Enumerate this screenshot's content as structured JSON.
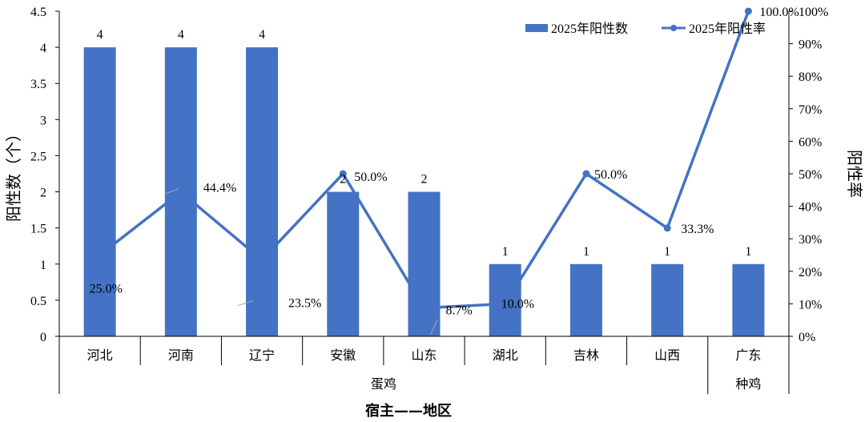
{
  "chart_data": {
    "type": "bar+line",
    "categories": [
      "河北",
      "河南",
      "辽宁",
      "安徽",
      "山东",
      "湖北",
      "吉林",
      "山西",
      "广东"
    ],
    "groups": [
      {
        "label": "蛋鸡",
        "categories": [
          "河北",
          "河南",
          "辽宁",
          "安徽",
          "山东",
          "湖北",
          "吉林",
          "山西"
        ]
      },
      {
        "label": "种鸡",
        "categories": [
          "广东"
        ]
      }
    ],
    "series": [
      {
        "name": "2025年阳性数",
        "type": "bar",
        "axis": "left",
        "color": "#4472C4",
        "values": [
          4,
          4,
          4,
          2,
          2,
          1,
          1,
          1,
          1
        ],
        "labels": [
          "4",
          "4",
          "4",
          "2",
          "2",
          "1",
          "1",
          "1",
          "1"
        ]
      },
      {
        "name": "2025年阳性率",
        "type": "line",
        "axis": "right",
        "color": "#4472C4",
        "values": [
          25.0,
          44.4,
          23.5,
          50.0,
          8.7,
          10.0,
          50.0,
          33.3,
          100.0
        ],
        "labels": [
          "25.0%",
          "44.4%",
          "23.5%",
          "50.0%",
          "8.7%",
          "10.0%",
          "50.0%",
          "33.3%",
          "100.0%"
        ]
      }
    ],
    "y_left": {
      "label": "阳性数（个）",
      "min": 0,
      "max": 4.5,
      "step": 0.5,
      "ticks": [
        "0",
        "0.5",
        "1",
        "1.5",
        "2",
        "2.5",
        "3",
        "3.5",
        "4",
        "4.5"
      ]
    },
    "y_right": {
      "label": "阳性率",
      "min": 0,
      "max": 100,
      "step": 10,
      "ticks": [
        "0%",
        "10%",
        "20%",
        "30%",
        "40%",
        "50%",
        "60%",
        "70%",
        "80%",
        "90%",
        "100%"
      ]
    },
    "xlabel": "宿主——地区",
    "legend": {
      "position": "top-right"
    },
    "grid": false
  }
}
